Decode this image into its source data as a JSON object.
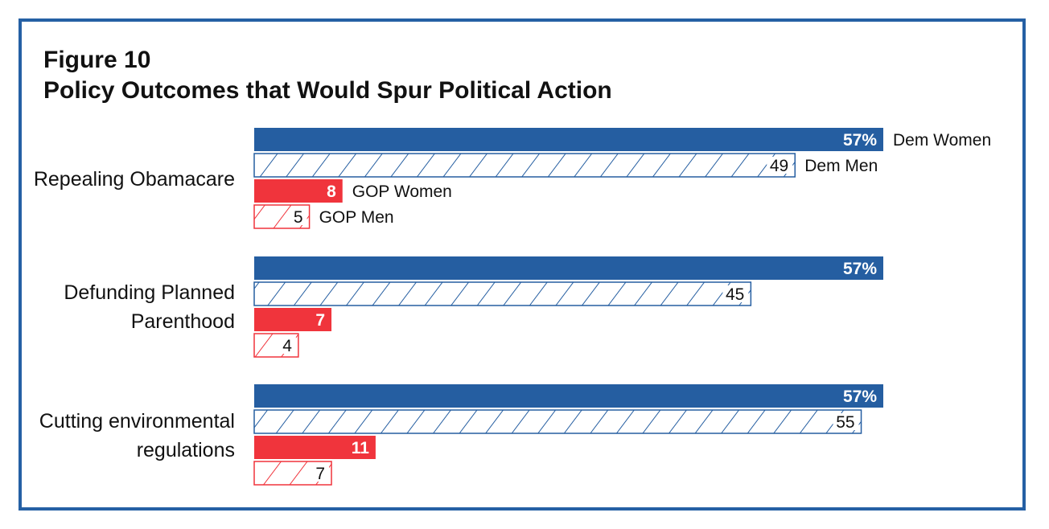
{
  "figure": {
    "number": "Figure 10",
    "title": "Policy Outcomes that Would Spur Political Action"
  },
  "colors": {
    "frame": "#2560a4",
    "dem_blue": "#255ea1",
    "gop_red": "#f0343c",
    "text": "#111111"
  },
  "chart_data": {
    "type": "bar",
    "orientation": "horizontal",
    "categories": [
      [
        "Repealing Obamacare"
      ],
      [
        "Defunding Planned",
        "Parenthood"
      ],
      [
        "Cutting environmental",
        "regulations"
      ]
    ],
    "series": [
      {
        "name": "Dem Women",
        "style": "solid",
        "color": "#255ea1",
        "values": [
          57,
          57,
          57
        ]
      },
      {
        "name": "Dem Men",
        "style": "hatched",
        "color": "#255ea1",
        "values": [
          49,
          45,
          55
        ]
      },
      {
        "name": "GOP Women",
        "style": "solid",
        "color": "#f0343c",
        "values": [
          8,
          7,
          11
        ]
      },
      {
        "name": "GOP Men",
        "style": "hatched",
        "color": "#f0343c",
        "values": [
          5,
          4,
          7
        ]
      }
    ],
    "value_labels": [
      [
        "57%",
        "49",
        "8",
        "5"
      ],
      [
        "57%",
        "45",
        "7",
        "4"
      ],
      [
        "57%",
        "55",
        "11",
        "7"
      ]
    ],
    "legend_placement": "inline labels beside first category bars",
    "grid": false,
    "xlim": [
      0,
      57
    ]
  }
}
